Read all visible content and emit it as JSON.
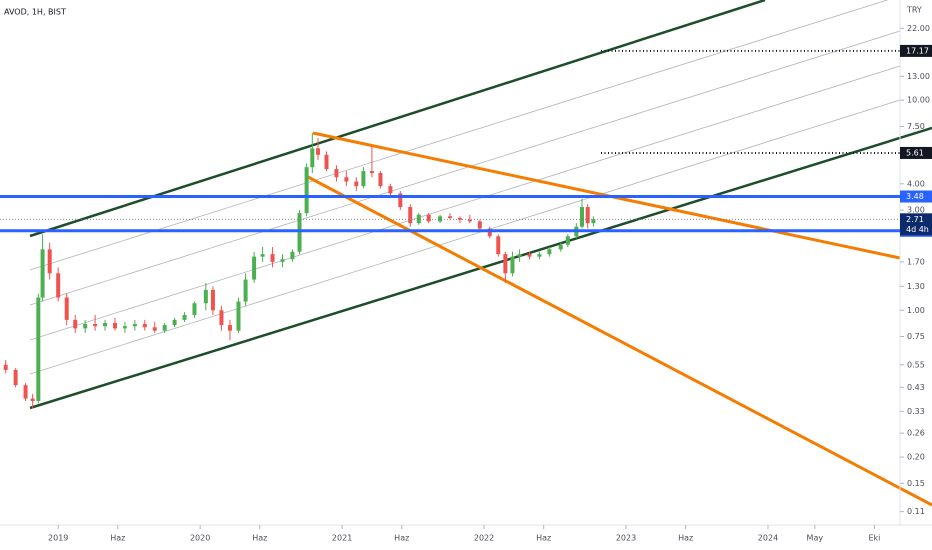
{
  "chart_data": {
    "type": "candlestick",
    "title": "AVOD, 1H, BIST",
    "y_unit": "TRY",
    "log_scale": true,
    "up_color": "#4caf50",
    "down_color": "#ef5350",
    "xlim": [
      2018.59,
      2024.93
    ],
    "xticks": [
      {
        "value": 2019,
        "label": "2019"
      },
      {
        "value": 2019.42,
        "label": "Haz"
      },
      {
        "value": 2020,
        "label": "2020"
      },
      {
        "value": 2020.42,
        "label": "Haz"
      },
      {
        "value": 2021,
        "label": "2021"
      },
      {
        "value": 2021.42,
        "label": "Haz"
      },
      {
        "value": 2022,
        "label": "2022"
      },
      {
        "value": 2022.42,
        "label": "Haz"
      },
      {
        "value": 2023,
        "label": "2023"
      },
      {
        "value": 2023.42,
        "label": "Haz"
      },
      {
        "value": 2024,
        "label": "2024"
      },
      {
        "value": 2024.33,
        "label": "May"
      },
      {
        "value": 2024.75,
        "label": "Eki"
      }
    ],
    "ylim": [
      0.095,
      30
    ],
    "yticks": [
      {
        "value": 0.11,
        "label": "0.11"
      },
      {
        "value": 0.15,
        "label": "0.15"
      },
      {
        "value": 0.2,
        "label": "0.20"
      },
      {
        "value": 0.26,
        "label": "0.26"
      },
      {
        "value": 0.33,
        "label": "0.33"
      },
      {
        "value": 0.43,
        "label": "0.43"
      },
      {
        "value": 0.55,
        "label": "0.55"
      },
      {
        "value": 0.75,
        "label": "0.75"
      },
      {
        "value": 1,
        "label": "1.00"
      },
      {
        "value": 1.3,
        "label": "1.30"
      },
      {
        "value": 1.7,
        "label": "1.70"
      },
      {
        "value": 3,
        "label": "3.00"
      },
      {
        "value": 4,
        "label": "4.00"
      },
      {
        "value": 7.5,
        "label": "7.50"
      },
      {
        "value": 10,
        "label": "10.00"
      },
      {
        "value": 13,
        "label": "13.00"
      },
      {
        "value": 22,
        "label": "22.00"
      }
    ],
    "x": [
      2018.63,
      2018.7,
      2018.77,
      2018.82,
      2018.86,
      2018.89,
      2018.94,
      2019.0,
      2019.06,
      2019.12,
      2019.19,
      2019.26,
      2019.33,
      2019.4,
      2019.47,
      2019.54,
      2019.61,
      2019.68,
      2019.75,
      2019.82,
      2019.89,
      2019.96,
      2020.04,
      2020.09,
      2020.15,
      2020.21,
      2020.27,
      2020.32,
      2020.38,
      2020.44,
      2020.51,
      2020.58,
      2020.65,
      2020.7,
      2020.75,
      2020.79,
      2020.83,
      2020.89,
      2020.96,
      2021.03,
      2021.1,
      2021.15,
      2021.21,
      2021.27,
      2021.34,
      2021.41,
      2021.48,
      2021.54,
      2021.61,
      2021.69,
      2021.76,
      2021.83,
      2021.9,
      2021.97,
      2022.04,
      2022.1,
      2022.15,
      2022.2,
      2022.25,
      2022.32,
      2022.39,
      2022.46,
      2022.54,
      2022.59,
      2022.65,
      2022.69,
      2022.73,
      2022.77
    ],
    "open": [
      0.55,
      0.52,
      0.44,
      0.38,
      0.37,
      1.15,
      1.95,
      1.5,
      1.15,
      0.9,
      0.82,
      0.86,
      0.84,
      0.87,
      0.82,
      0.84,
      0.86,
      0.83,
      0.8,
      0.85,
      0.9,
      0.95,
      1.08,
      1.25,
      1.0,
      0.85,
      0.8,
      1.1,
      1.4,
      1.8,
      1.85,
      1.7,
      1.75,
      1.9,
      2.9,
      4.8,
      5.9,
      5.5,
      4.7,
      4.3,
      4.1,
      3.9,
      4.6,
      4.5,
      3.9,
      3.6,
      3.1,
      2.6,
      2.85,
      2.65,
      2.8,
      2.75,
      2.7,
      2.65,
      2.45,
      2.25,
      1.85,
      1.5,
      1.8,
      1.85,
      1.8,
      1.85,
      1.95,
      2.05,
      2.25,
      2.5,
      3.1,
      2.6
    ],
    "high": [
      0.58,
      0.53,
      0.45,
      0.4,
      1.2,
      2.3,
      2.1,
      1.6,
      1.2,
      0.95,
      0.9,
      0.95,
      0.9,
      0.92,
      0.88,
      0.9,
      0.9,
      0.88,
      0.87,
      0.92,
      0.98,
      1.1,
      1.35,
      1.3,
      1.05,
      0.9,
      1.15,
      1.5,
      1.9,
      2.0,
      2.0,
      1.85,
      1.95,
      3.0,
      5.0,
      7.0,
      6.6,
      5.7,
      4.9,
      4.6,
      4.3,
      4.8,
      6.0,
      4.6,
      4.0,
      3.7,
      3.2,
      2.9,
      2.9,
      2.85,
      2.9,
      2.8,
      2.85,
      2.7,
      2.5,
      2.3,
      1.9,
      1.9,
      1.95,
      1.9,
      1.9,
      2.0,
      2.1,
      2.3,
      2.6,
      3.4,
      3.2,
      2.8
    ],
    "low": [
      0.5,
      0.43,
      0.37,
      0.34,
      0.36,
      1.1,
      1.4,
      1.1,
      0.85,
      0.78,
      0.78,
      0.8,
      0.8,
      0.8,
      0.78,
      0.8,
      0.8,
      0.78,
      0.78,
      0.83,
      0.88,
      0.92,
      1.0,
      0.95,
      0.8,
      0.72,
      0.78,
      1.05,
      1.35,
      1.7,
      1.6,
      1.6,
      1.7,
      1.85,
      2.8,
      4.5,
      5.2,
      4.6,
      4.1,
      3.9,
      3.7,
      3.8,
      4.3,
      3.8,
      3.5,
      3.0,
      2.5,
      2.55,
      2.6,
      2.6,
      2.7,
      2.6,
      2.6,
      2.4,
      2.2,
      1.8,
      1.35,
      1.45,
      1.7,
      1.75,
      1.75,
      1.8,
      1.9,
      2.0,
      2.2,
      2.45,
      2.45,
      2.5
    ],
    "close": [
      0.52,
      0.44,
      0.38,
      0.37,
      1.15,
      1.95,
      1.5,
      1.15,
      0.9,
      0.82,
      0.86,
      0.84,
      0.87,
      0.82,
      0.84,
      0.86,
      0.83,
      0.8,
      0.85,
      0.9,
      0.95,
      1.08,
      1.25,
      1.0,
      0.85,
      0.8,
      1.1,
      1.4,
      1.8,
      1.85,
      1.7,
      1.75,
      1.9,
      2.9,
      4.8,
      5.9,
      5.5,
      4.7,
      4.3,
      4.1,
      3.9,
      4.6,
      4.5,
      3.9,
      3.6,
      3.1,
      2.6,
      2.85,
      2.65,
      2.8,
      2.75,
      2.7,
      2.65,
      2.45,
      2.25,
      1.85,
      1.5,
      1.8,
      1.85,
      1.8,
      1.85,
      1.95,
      2.05,
      2.25,
      2.5,
      3.1,
      2.6,
      2.71
    ],
    "levels": [
      {
        "value": 3.48,
        "color": "#2962ff"
      },
      {
        "value": 2.39,
        "color": "#2962ff"
      }
    ],
    "markers": [
      {
        "value": 17.17,
        "color": "#131722"
      },
      {
        "value": 5.61,
        "color": "#131722"
      }
    ],
    "last_price": {
      "value": 2.71,
      "countdown": "4d 4h",
      "color": "#0d2a6b"
    }
  }
}
